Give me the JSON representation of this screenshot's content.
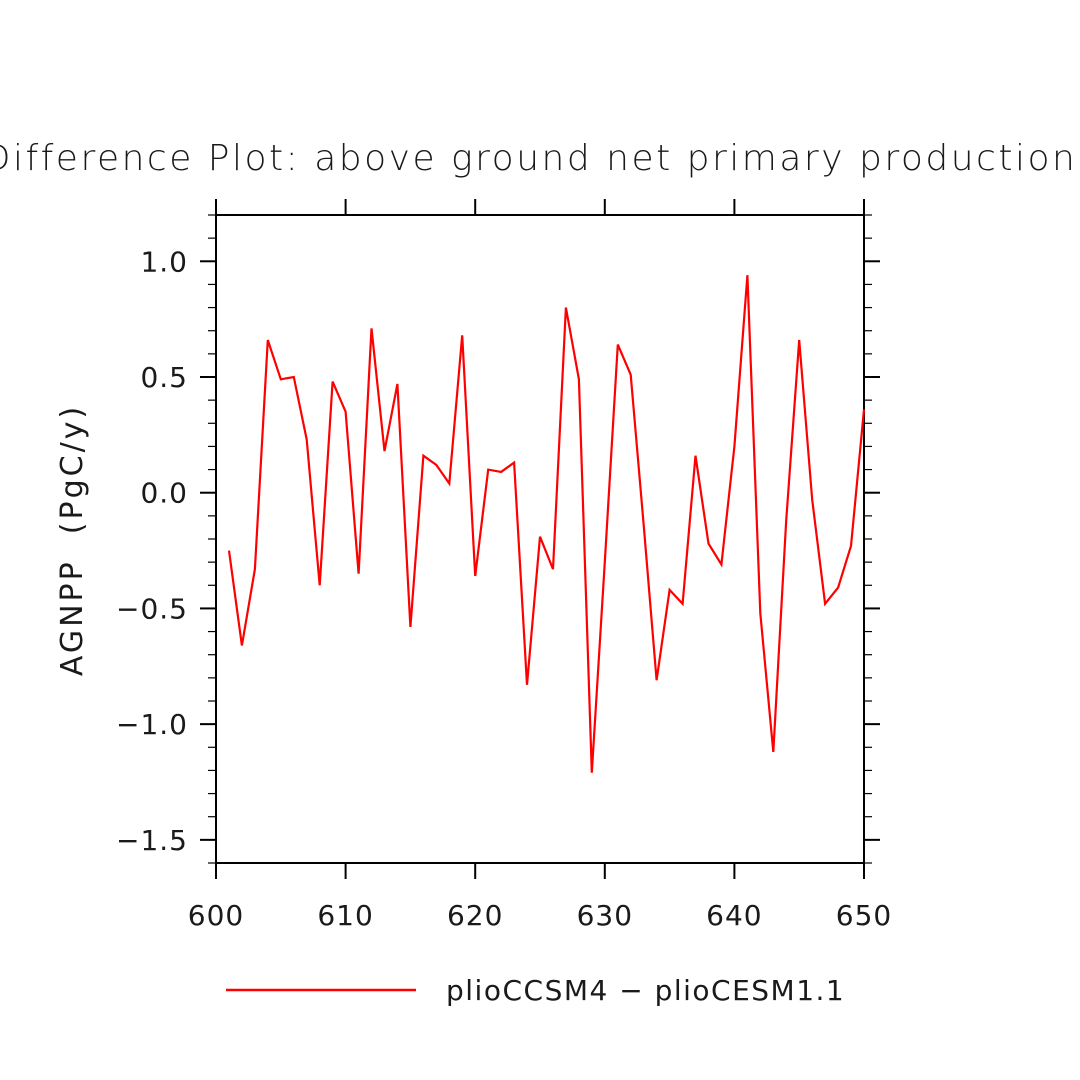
{
  "chart_data": {
    "type": "line",
    "title": "Difference Plot: above ground net primary production",
    "xlabel": "",
    "ylabel": "AGNPP  (PgC/y)",
    "xlim": [
      600,
      650
    ],
    "ylim": [
      -1.6,
      1.2
    ],
    "xticks": [
      600,
      610,
      620,
      630,
      640,
      650
    ],
    "xtick_labels": [
      "600",
      "610",
      "620",
      "630",
      "640",
      "650"
    ],
    "yticks": [
      -1.5,
      -1.0,
      -0.5,
      0.0,
      0.5,
      1.0
    ],
    "ytick_labels": [
      "−1.5",
      "−1.0",
      "−0.5",
      "0.0",
      "0.5",
      "1.0"
    ],
    "grid": false,
    "legend_position": "bottom",
    "colors": {
      "line": "#ff0000",
      "axis": "#000000"
    },
    "series": [
      {
        "name": "plioCCSM4 − plioCESM1.1",
        "x": [
          601,
          602,
          603,
          604,
          605,
          606,
          607,
          608,
          609,
          610,
          611,
          612,
          613,
          614,
          615,
          616,
          617,
          618,
          619,
          620,
          621,
          622,
          623,
          624,
          625,
          626,
          627,
          628,
          629,
          630,
          631,
          632,
          633,
          634,
          635,
          636,
          637,
          638,
          639,
          640,
          641,
          642,
          643,
          644,
          645,
          646,
          647,
          648,
          649,
          650
        ],
        "y": [
          -0.25,
          -0.66,
          -0.33,
          0.66,
          0.49,
          0.5,
          0.23,
          -0.4,
          0.48,
          0.35,
          -0.35,
          0.71,
          0.18,
          0.47,
          -0.58,
          0.16,
          0.12,
          0.04,
          0.68,
          -0.36,
          0.1,
          0.09,
          0.13,
          -0.83,
          -0.19,
          -0.33,
          0.8,
          0.49,
          -1.21,
          -0.3,
          0.64,
          0.51,
          -0.14,
          -0.81,
          -0.42,
          -0.48,
          0.16,
          -0.22,
          -0.31,
          0.2,
          0.94,
          -0.52,
          -1.12,
          -0.12,
          0.66,
          -0.03,
          -0.48,
          -0.41,
          -0.23,
          0.36
        ]
      }
    ]
  }
}
